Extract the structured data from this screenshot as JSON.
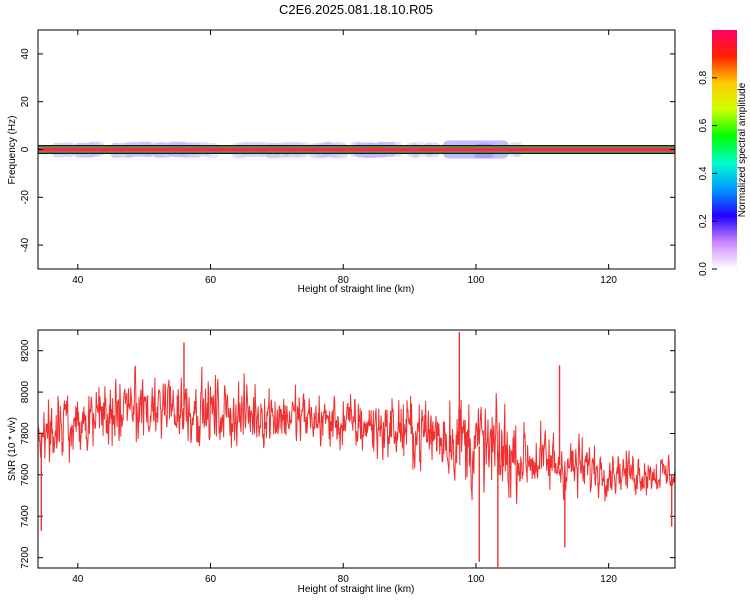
{
  "title": "C2E6.2025.081.18.10.R05",
  "chart_data": [
    {
      "type": "heatmap",
      "xlabel": "Height of straight line (km)",
      "ylabel": "Frequency (Hz)",
      "xlim": [
        34,
        130
      ],
      "ylim": [
        -50,
        50
      ],
      "x_ticks": [
        40,
        60,
        80,
        100,
        120
      ],
      "y_ticks": [
        -40,
        -20,
        0,
        20,
        40
      ],
      "colorbar": {
        "label": "Normalized spectral amplitude",
        "range": [
          0,
          1
        ],
        "ticks": [
          0.0,
          0.2,
          0.4,
          0.6,
          0.8
        ],
        "colors": [
          "#ffffff",
          "#cc88ff",
          "#2200ff",
          "#0099ff",
          "#00ffcc",
          "#00ff00",
          "#ccff00",
          "#ffcc00",
          "#ff2200",
          "#ff0066"
        ]
      },
      "band": {
        "core_frequency_hz": 0,
        "core_amplitude": 0.98,
        "halo_half_width_hz": 2.5,
        "enhanced_region_km": [
          95,
          105
        ]
      }
    },
    {
      "type": "line",
      "xlabel": "Height of straight line (km)",
      "ylabel": "SNR (10 * v/v)",
      "xlim": [
        34,
        130
      ],
      "ylim": [
        7150,
        8300
      ],
      "x_ticks": [
        40,
        60,
        80,
        100,
        120
      ],
      "y_ticks": [
        7200,
        7400,
        7600,
        7800,
        8000,
        8200
      ],
      "color": "#f03030",
      "trend": [
        [
          34,
          7800
        ],
        [
          40,
          7870
        ],
        [
          50,
          7920
        ],
        [
          56,
          7930
        ],
        [
          60,
          7900
        ],
        [
          70,
          7890
        ],
        [
          80,
          7850
        ],
        [
          88,
          7820
        ],
        [
          94,
          7800
        ],
        [
          98,
          7770
        ],
        [
          102,
          7720
        ],
        [
          106,
          7690
        ],
        [
          112,
          7650
        ],
        [
          120,
          7620
        ],
        [
          130,
          7600
        ]
      ],
      "amplitude": [
        [
          34,
          170
        ],
        [
          45,
          190
        ],
        [
          55,
          210
        ],
        [
          65,
          180
        ],
        [
          75,
          160
        ],
        [
          85,
          170
        ],
        [
          92,
          200
        ],
        [
          96,
          260
        ],
        [
          100,
          300
        ],
        [
          104,
          270
        ],
        [
          108,
          180
        ],
        [
          112,
          200
        ],
        [
          120,
          130
        ],
        [
          130,
          110
        ]
      ],
      "extremes": [
        [
          34.5,
          7330
        ],
        [
          56,
          8240
        ],
        [
          97.5,
          8290
        ],
        [
          100.5,
          7180
        ],
        [
          103.3,
          7140
        ],
        [
          112.6,
          8130
        ],
        [
          113.4,
          7250
        ],
        [
          129.5,
          7350
        ]
      ]
    }
  ]
}
